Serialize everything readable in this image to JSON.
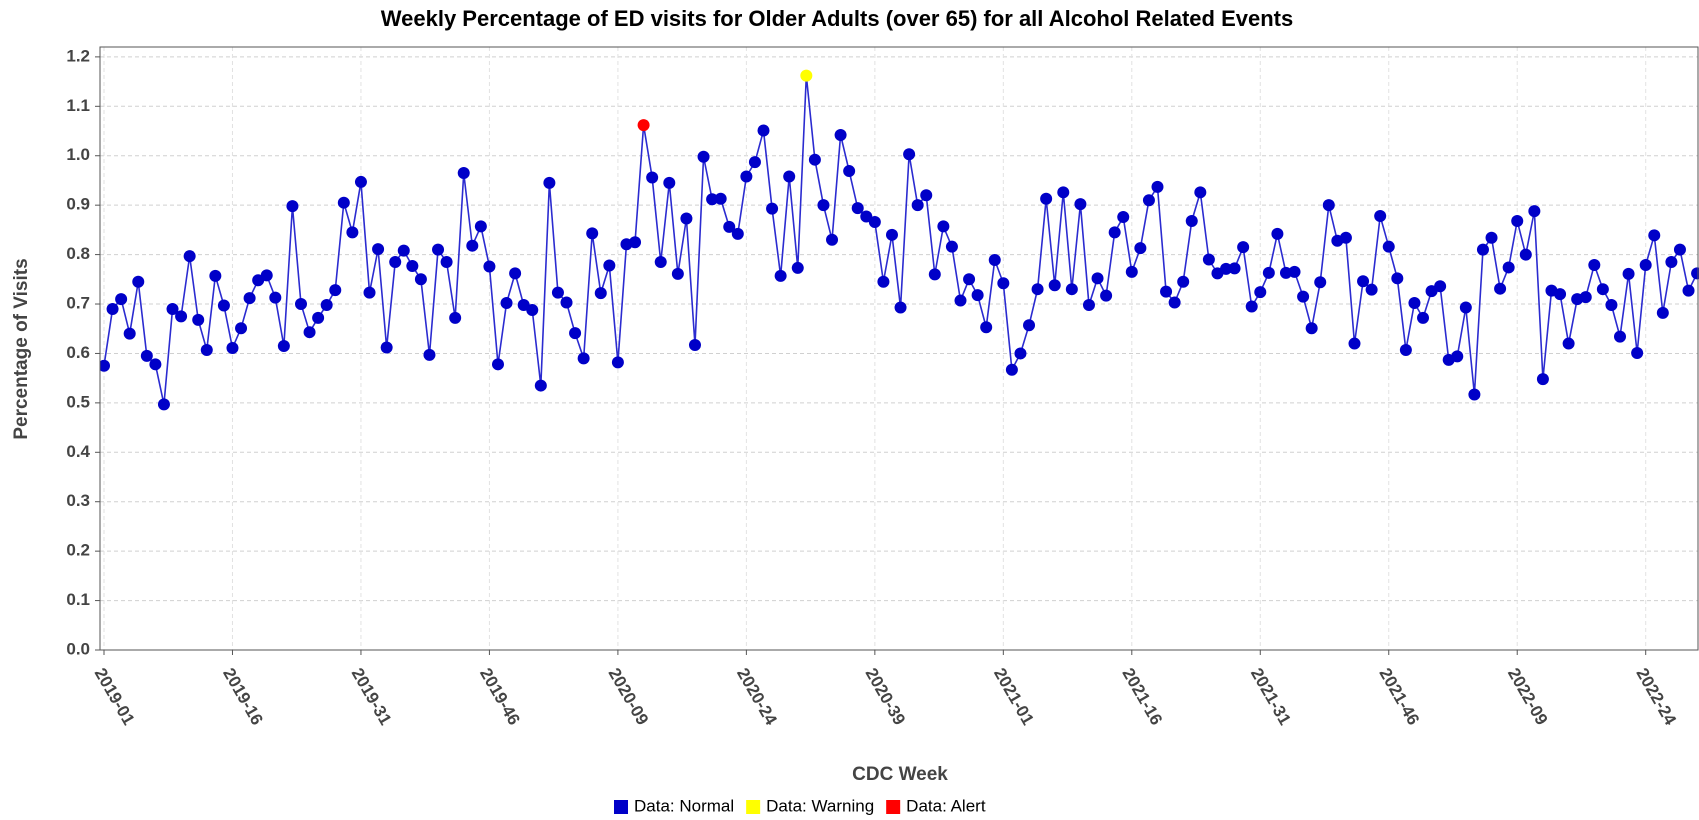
{
  "chart_data": {
    "type": "line",
    "title": "Weekly Percentage of ED visits for Older Adults (over 65) for all Alcohol Related Events",
    "x_label": "CDC Week",
    "y_label": "Percentage of Visits",
    "categories": [
      "2019-01",
      null,
      null,
      null,
      null,
      null,
      null,
      null,
      null,
      null,
      null,
      null,
      null,
      null,
      null,
      "2019-16",
      null,
      null,
      null,
      null,
      null,
      null,
      null,
      null,
      null,
      null,
      null,
      null,
      null,
      null,
      "2019-31",
      null,
      null,
      null,
      null,
      null,
      null,
      null,
      null,
      null,
      null,
      null,
      null,
      null,
      null,
      "2019-46",
      null,
      null,
      null,
      null,
      null,
      null,
      null,
      null,
      null,
      null,
      null,
      null,
      null,
      null,
      "2020-09",
      null,
      null,
      null,
      null,
      null,
      null,
      null,
      null,
      null,
      null,
      null,
      null,
      null,
      null,
      "2020-24",
      null,
      null,
      null,
      null,
      null,
      null,
      null,
      null,
      null,
      null,
      null,
      null,
      null,
      null,
      "2020-39",
      null,
      null,
      null,
      null,
      null,
      null,
      null,
      null,
      null,
      null,
      null,
      null,
      null,
      null,
      "2021-01",
      null,
      null,
      null,
      null,
      null,
      null,
      null,
      null,
      null,
      null,
      null,
      null,
      null,
      null,
      "2021-16",
      null,
      null,
      null,
      null,
      null,
      null,
      null,
      null,
      null,
      null,
      null,
      null,
      null,
      null,
      "2021-31",
      null,
      null,
      null,
      null,
      null,
      null,
      null,
      null,
      null,
      null,
      null,
      null,
      null,
      null,
      "2021-46",
      null,
      null,
      null,
      null,
      null,
      null,
      null,
      null,
      null,
      null,
      null,
      null,
      null,
      null,
      "2022-09",
      null,
      null,
      null,
      null,
      null,
      null,
      null,
      null,
      null,
      null,
      null,
      null,
      null,
      null,
      "2022-24",
      null,
      null,
      null,
      null,
      null,
      null
    ],
    "values": [
      0.575,
      0.69,
      0.71,
      0.64,
      0.745,
      0.595,
      0.578,
      0.497,
      0.69,
      0.675,
      0.797,
      0.668,
      0.607,
      0.757,
      0.697,
      0.611,
      0.651,
      0.712,
      0.748,
      0.758,
      0.713,
      0.615,
      0.898,
      0.7,
      0.643,
      0.672,
      0.698,
      0.728,
      0.905,
      0.845,
      0.947,
      0.723,
      0.811,
      0.612,
      0.785,
      0.808,
      0.777,
      0.75,
      0.597,
      0.81,
      0.785,
      0.672,
      0.965,
      0.818,
      0.857,
      0.776,
      0.578,
      0.702,
      0.762,
      0.698,
      0.688,
      0.535,
      0.945,
      0.723,
      0.703,
      0.641,
      0.59,
      0.843,
      0.722,
      0.778,
      0.582,
      0.821,
      0.825,
      1.062,
      0.956,
      0.785,
      0.945,
      0.761,
      0.873,
      0.617,
      0.998,
      0.912,
      0.913,
      0.856,
      0.842,
      0.958,
      0.987,
      1.051,
      0.893,
      0.757,
      0.958,
      0.773,
      1.162,
      0.992,
      0.9,
      0.83,
      1.042,
      0.969,
      0.894,
      0.877,
      0.866,
      0.745,
      0.84,
      0.693,
      1.003,
      0.9,
      0.92,
      0.76,
      0.857,
      0.816,
      0.707,
      0.75,
      0.718,
      0.653,
      0.789,
      0.742,
      0.567,
      0.6,
      0.657,
      0.73,
      0.913,
      0.738,
      0.926,
      0.73,
      0.902,
      0.698,
      0.752,
      0.717,
      0.845,
      0.876,
      0.765,
      0.813,
      0.91,
      0.937,
      0.725,
      0.703,
      0.745,
      0.868,
      0.926,
      0.79,
      0.762,
      0.771,
      0.772,
      0.815,
      0.695,
      0.724,
      0.763,
      0.842,
      0.763,
      0.765,
      0.715,
      0.651,
      0.744,
      0.9,
      0.828,
      0.834,
      0.62,
      0.746,
      0.729,
      0.878,
      0.816,
      0.752,
      0.607,
      0.702,
      0.672,
      0.726,
      0.736,
      0.587,
      0.594,
      0.693,
      0.517,
      0.81,
      0.834,
      0.731,
      0.774,
      0.868,
      0.8,
      0.888,
      0.548,
      0.727,
      0.72,
      0.62,
      0.71,
      0.714,
      0.779,
      0.73,
      0.698,
      0.634,
      0.761,
      0.601,
      0.779,
      0.839,
      0.682,
      0.785,
      0.81,
      0.727,
      0.762
    ],
    "line_color": "#2b2bd0",
    "legend": [
      {
        "name": "Data: Normal",
        "color": "#0000c8"
      },
      {
        "name": "Data: Warning",
        "color": "#ffff00",
        "points": [
          82
        ]
      },
      {
        "name": "Data: Alert",
        "color": "#ff0000",
        "points": [
          63
        ]
      }
    ],
    "ylim": [
      0,
      1.22
    ],
    "yticks": [
      {
        "value": 0,
        "label": "0.0"
      },
      0.1,
      0.2,
      0.3,
      0.4,
      0.5,
      0.6,
      0.7,
      0.8,
      0.9,
      {
        "value": 1,
        "label": "1.0"
      },
      1.1,
      1.2
    ],
    "grid": true
  }
}
